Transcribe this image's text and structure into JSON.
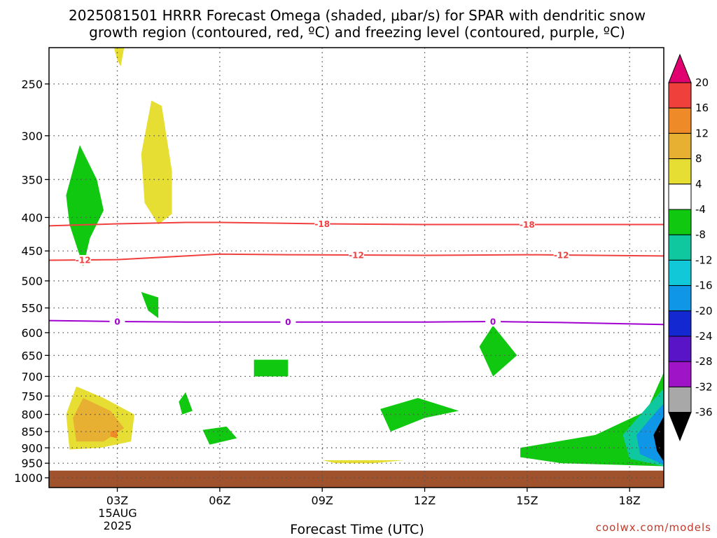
{
  "chart_data": {
    "type": "heatmap",
    "title_lines": [
      "2025081501 HRRR Forecast Omega (shaded, μbar/s) for SPAR with dendritic snow",
      "growth region (contoured, red, ºC) and freezing level (contoured, purple, ºC)"
    ],
    "xlabel": "Forecast Time (UTC)",
    "x_tick_labels": [
      "03Z",
      "06Z",
      "09Z",
      "12Z",
      "15Z",
      "18Z"
    ],
    "x_tick_hours": [
      3,
      6,
      9,
      12,
      15,
      18
    ],
    "x_range_hours": [
      1,
      19
    ],
    "date_label": [
      "15AUG",
      "2025"
    ],
    "ylabel": "",
    "y_ticks": [
      250,
      300,
      350,
      400,
      450,
      500,
      550,
      600,
      650,
      700,
      750,
      800,
      850,
      900,
      950,
      1000
    ],
    "y_range_hPa": [
      1035,
      220
    ],
    "grid": true,
    "colorbar": {
      "tick_labels": [
        "20",
        "16",
        "12",
        "8",
        "4",
        "-4",
        "-8",
        "-12",
        "-16",
        "-20",
        "-24",
        "-28",
        "-32",
        "-36"
      ],
      "bins": [
        {
          "color": "#e0006f"
        },
        {
          "color": "#f0403c",
          "from": 16,
          "to": 20
        },
        {
          "color": "#ee8a28",
          "from": 12,
          "to": 16
        },
        {
          "color": "#e8b032",
          "from": 8,
          "to": 12
        },
        {
          "color": "#e6de32",
          "from": 4,
          "to": 8
        },
        {
          "color": "#ffffff",
          "from": -4,
          "to": 4
        },
        {
          "color": "#10c810",
          "from": -8,
          "to": -4
        },
        {
          "color": "#10c8a0",
          "from": -12,
          "to": -8
        },
        {
          "color": "#10c8d8",
          "from": -16,
          "to": -12
        },
        {
          "color": "#1096e6",
          "from": -20,
          "to": -16
        },
        {
          "color": "#1428d2",
          "from": -24,
          "to": -20
        },
        {
          "color": "#5a14c8",
          "from": -28,
          "to": -24
        },
        {
          "color": "#a014c8",
          "from": -32,
          "to": -28
        },
        {
          "color": "#a8a8a8",
          "from": -36,
          "to": -32
        },
        {
          "color": "#000000"
        }
      ]
    },
    "contours": [
      {
        "level": -18,
        "color": "#f04040",
        "label_hours": [
          9,
          15
        ],
        "points": [
          [
            1,
            412
          ],
          [
            3,
            409
          ],
          [
            5,
            407
          ],
          [
            6,
            407
          ],
          [
            9,
            409
          ],
          [
            12,
            410
          ],
          [
            15,
            410
          ],
          [
            19,
            410
          ]
        ]
      },
      {
        "level": -12,
        "color": "#f04040",
        "label_hours": [
          2,
          10,
          16
        ],
        "points": [
          [
            1,
            465
          ],
          [
            3,
            464
          ],
          [
            5,
            458
          ],
          [
            6,
            455
          ],
          [
            8,
            456
          ],
          [
            12,
            457
          ],
          [
            15,
            456
          ],
          [
            19,
            458
          ]
        ]
      },
      {
        "level": 0,
        "color": "#a000d0",
        "label_hours": [
          3,
          8,
          14
        ],
        "points": [
          [
            1,
            575
          ],
          [
            3,
            577
          ],
          [
            5,
            578
          ],
          [
            8,
            578
          ],
          [
            12,
            578
          ],
          [
            14,
            577
          ],
          [
            16,
            579
          ],
          [
            19,
            583
          ]
        ]
      }
    ],
    "omega_regions": [
      {
        "value": 5,
        "points": [
          [
            2.9,
            220
          ],
          [
            3.2,
            220
          ],
          [
            3.1,
            235
          ],
          [
            3.0,
            230
          ]
        ]
      },
      {
        "value": 5,
        "points": [
          [
            3.7,
            320
          ],
          [
            4.0,
            265
          ],
          [
            4.3,
            270
          ],
          [
            4.6,
            340
          ],
          [
            4.6,
            395
          ],
          [
            4.2,
            410
          ],
          [
            3.8,
            380
          ]
        ]
      },
      {
        "value": -5,
        "points": [
          [
            1.5,
            370
          ],
          [
            1.9,
            310
          ],
          [
            2.4,
            350
          ],
          [
            2.6,
            390
          ],
          [
            2.2,
            430
          ],
          [
            2.0,
            475
          ],
          [
            1.6,
            410
          ]
        ]
      },
      {
        "value": -5,
        "points": [
          [
            3.7,
            520
          ],
          [
            4.2,
            530
          ],
          [
            4.2,
            570
          ],
          [
            3.9,
            555
          ]
        ]
      },
      {
        "value": -5,
        "points": [
          [
            7.0,
            660
          ],
          [
            8.0,
            660
          ],
          [
            8.0,
            700
          ],
          [
            7.0,
            700
          ]
        ]
      },
      {
        "value": -5,
        "points": [
          [
            4.8,
            765
          ],
          [
            5.0,
            740
          ],
          [
            5.2,
            790
          ],
          [
            4.9,
            800
          ]
        ]
      },
      {
        "value": -5,
        "points": [
          [
            5.5,
            845
          ],
          [
            6.2,
            835
          ],
          [
            6.5,
            870
          ],
          [
            5.7,
            890
          ]
        ]
      },
      {
        "value": -5,
        "points": [
          [
            10.7,
            785
          ],
          [
            11.8,
            755
          ],
          [
            13.0,
            790
          ],
          [
            12.0,
            810
          ],
          [
            11.0,
            850
          ]
        ]
      },
      {
        "value": -5,
        "points": [
          [
            13.6,
            630
          ],
          [
            14.0,
            585
          ],
          [
            14.7,
            650
          ],
          [
            14.0,
            700
          ]
        ]
      },
      {
        "value": -5,
        "points": [
          [
            14.8,
            900
          ],
          [
            17.0,
            860
          ],
          [
            18.5,
            790
          ],
          [
            19.0,
            690
          ],
          [
            19,
            960
          ],
          [
            16.0,
            950
          ],
          [
            14.8,
            930
          ]
        ]
      },
      {
        "value": -10,
        "points": [
          [
            17.8,
            860
          ],
          [
            18.6,
            770
          ],
          [
            19,
            730
          ],
          [
            19,
            960
          ],
          [
            18.0,
            935
          ]
        ]
      },
      {
        "value": -20,
        "points": [
          [
            18.2,
            860
          ],
          [
            18.8,
            790
          ],
          [
            19,
            770
          ],
          [
            19,
            955
          ],
          [
            18.3,
            920
          ]
        ]
      },
      {
        "value": -40,
        "points": [
          [
            18.7,
            860
          ],
          [
            19,
            805
          ],
          [
            19,
            945
          ],
          [
            18.8,
            910
          ]
        ]
      },
      {
        "value": 5,
        "points": [
          [
            1.5,
            800
          ],
          [
            1.8,
            725
          ],
          [
            2.6,
            755
          ],
          [
            3.5,
            800
          ],
          [
            3.4,
            880
          ],
          [
            2.5,
            900
          ],
          [
            1.6,
            905
          ]
        ]
      },
      {
        "value": 10,
        "points": [
          [
            1.7,
            810
          ],
          [
            2.0,
            755
          ],
          [
            2.8,
            790
          ],
          [
            3.2,
            840
          ],
          [
            2.6,
            880
          ],
          [
            1.8,
            880
          ]
        ]
      },
      {
        "value": 14,
        "points": [
          [
            2.8,
            850
          ],
          [
            3.0,
            845
          ],
          [
            3.0,
            870
          ],
          [
            2.8,
            865
          ]
        ]
      },
      {
        "value": 5,
        "points": [
          [
            9.0,
            940
          ],
          [
            11.4,
            940
          ],
          [
            10.5,
            950
          ],
          [
            9.4,
            950
          ]
        ]
      }
    ],
    "terrain": {
      "color": "#a0522d",
      "surface_hPa": 975
    }
  },
  "credit": "coolwx.com/models"
}
